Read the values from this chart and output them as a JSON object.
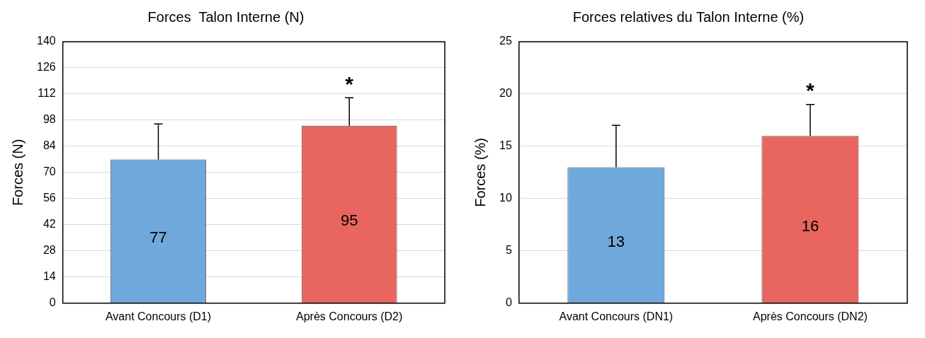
{
  "chart_data": [
    {
      "type": "bar",
      "title": "Forces  Talon Interne (N)",
      "ylabel": "Forces (N)",
      "categories": [
        "Avant Concours (D1)",
        "Après Concours (D2)"
      ],
      "values": [
        77,
        95
      ],
      "colors": [
        "#6fa8dc",
        "#e8665f"
      ],
      "errors": [
        [
          77,
          96
        ],
        [
          95,
          110
        ]
      ],
      "ylim": [
        0,
        140
      ],
      "yticks": [
        0,
        14,
        28,
        42,
        56,
        70,
        84,
        98,
        112,
        126,
        140
      ],
      "grid": "y",
      "legend": false,
      "data_labels": true,
      "annotations": [
        "*"
      ]
    },
    {
      "type": "bar",
      "title": "Forces relatives du Talon Interne (%)",
      "ylabel": "Forces (%)",
      "categories": [
        "Avant Concours (DN1)",
        "Après Concours (DN2)"
      ],
      "values": [
        13,
        16
      ],
      "colors": [
        "#6fa8dc",
        "#e8665f"
      ],
      "errors": [
        [
          13,
          17
        ],
        [
          16,
          19
        ]
      ],
      "ylim": [
        0,
        25
      ],
      "yticks": [
        0,
        5,
        10,
        15,
        20,
        25
      ],
      "grid": "y",
      "legend": false,
      "data_labels": true,
      "annotations": [
        "*"
      ]
    }
  ]
}
